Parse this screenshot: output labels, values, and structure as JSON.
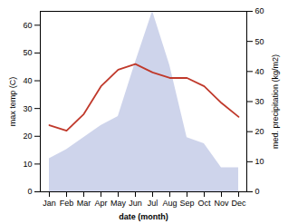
{
  "chart_data": {
    "type": "line",
    "xlabel": "date (month)",
    "ylabel": "max temp (C)",
    "y2label": "med. precipitation (kg/m2)",
    "categories": [
      "Jan",
      "Feb",
      "Mar",
      "Apr",
      "May",
      "Jun",
      "Jul",
      "Aug",
      "Sep",
      "Oct",
      "Nov",
      "Dec"
    ],
    "series": [
      {
        "type": "area",
        "axis": "y2",
        "color": "#c5cce8",
        "values": [
          11,
          14,
          18,
          22,
          25,
          43,
          60,
          42,
          18,
          16,
          8,
          8
        ]
      },
      {
        "type": "line",
        "color": "#c0392b",
        "values": [
          24,
          22,
          28,
          38,
          44,
          46,
          43,
          41,
          41,
          38,
          32,
          27
        ]
      }
    ],
    "ylim": [
      0,
      65
    ],
    "yticks": [
      0,
      10,
      20,
      30,
      40,
      50,
      60
    ],
    "y2lim": [
      0,
      60
    ],
    "y2ticks": [
      0,
      10,
      20,
      30,
      40,
      50,
      60
    ],
    "grid": false
  }
}
